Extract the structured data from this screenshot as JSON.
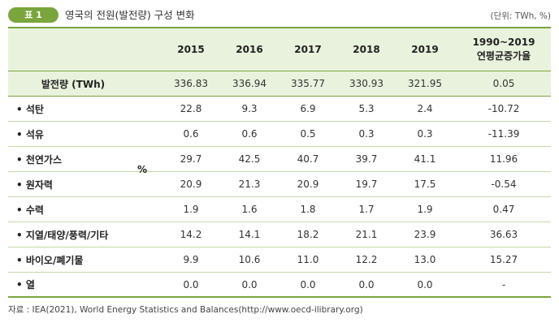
{
  "badge": "표 1",
  "title": "영국의 전원(발전량) 구성 변화",
  "unit": "(단위: TWh, %)",
  "columns": {
    "y2015": "2015",
    "y2016": "2016",
    "y2017": "2017",
    "y2018": "2018",
    "y2019": "2019",
    "growth_line1": "1990~2019",
    "growth_line2": "연평균증가율"
  },
  "percent_label": "%",
  "rows": [
    {
      "label": "발전량 (TWh)",
      "v2015": "336.83",
      "v2016": "336.94",
      "v2017": "335.77",
      "v2018": "330.93",
      "v2019": "321.95",
      "growth": "0.05"
    },
    {
      "label": "• 석탄",
      "v2015": "22.8",
      "v2016": "9.3",
      "v2017": "6.9",
      "v2018": "5.3",
      "v2019": "2.4",
      "growth": "-10.72"
    },
    {
      "label": "• 석유",
      "v2015": "0.6",
      "v2016": "0.6",
      "v2017": "0.5",
      "v2018": "0.3",
      "v2019": "0.3",
      "growth": "-11.39"
    },
    {
      "label": "• 천연가스",
      "v2015": "29.7",
      "v2016": "42.5",
      "v2017": "40.7",
      "v2018": "39.7",
      "v2019": "41.1",
      "growth": "11.96"
    },
    {
      "label": "• 원자력",
      "v2015": "20.9",
      "v2016": "21.3",
      "v2017": "20.9",
      "v2018": "19.7",
      "v2019": "17.5",
      "growth": "-0.54"
    },
    {
      "label": "• 수력",
      "v2015": "1.9",
      "v2016": "1.6",
      "v2017": "1.8",
      "v2018": "1.7",
      "v2019": "1.9",
      "growth": "0.47"
    },
    {
      "label": "• 지열/태양/풍력/기타",
      "v2015": "14.2",
      "v2016": "14.1",
      "v2017": "18.2",
      "v2018": "21.1",
      "v2019": "23.9",
      "growth": "36.63"
    },
    {
      "label": "• 바이오/폐기물",
      "v2015": "9.9",
      "v2016": "10.6",
      "v2017": "11.0",
      "v2018": "12.2",
      "v2019": "13.0",
      "growth": "15.27"
    },
    {
      "label": "• 열",
      "v2015": "0.0",
      "v2016": "0.0",
      "v2017": "0.0",
      "v2018": "0.0",
      "v2019": "0.0",
      "growth": "-"
    }
  ],
  "source": "자료 : IEA(2021), World Energy Statistics and Balances(http://www.oecd-ilibrary.org)",
  "colors": {
    "accent": "#7aa43c",
    "header_bg": "#e9f2dd",
    "row_line": "#c4d9a8"
  }
}
